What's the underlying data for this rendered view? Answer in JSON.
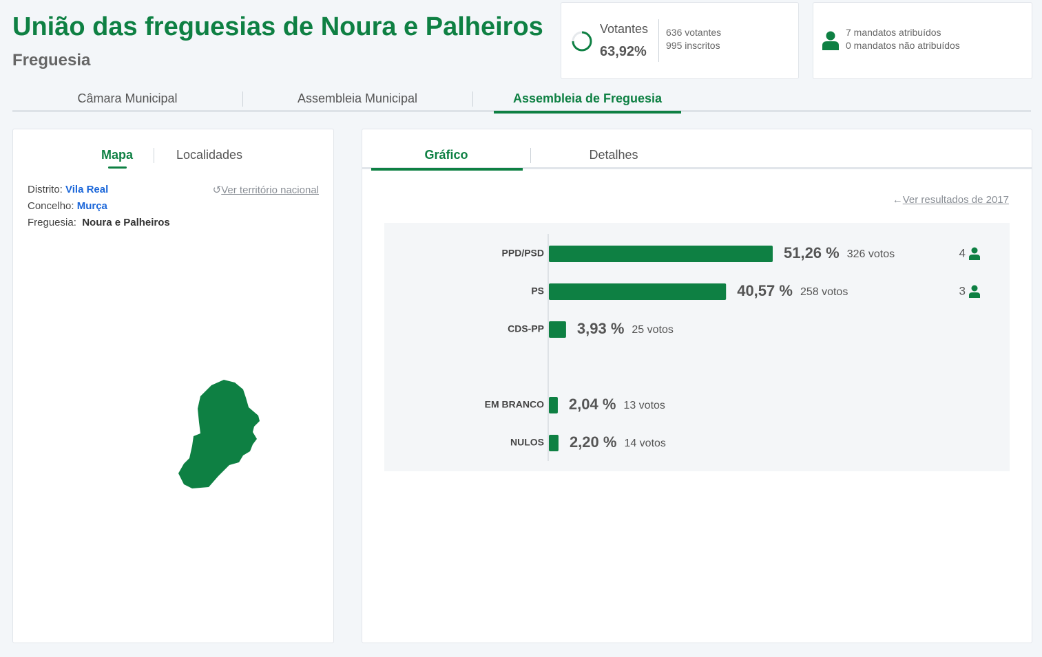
{
  "header": {
    "title": "União das freguesias de Noura e Palheiros",
    "subtitle": "Freguesia"
  },
  "turnout": {
    "label": "Votantes",
    "percent": "63,92%",
    "voters": "636 votantes",
    "registered": "995 inscritos"
  },
  "mandates": {
    "assigned": "7 mandatos atribuídos",
    "unassigned": "0 mandatos não atribuídos"
  },
  "tabs": [
    "Câmara Municipal",
    "Assembleia Municipal",
    "Assembleia de Freguesia"
  ],
  "left_panel": {
    "tabs": [
      "Mapa",
      "Localidades"
    ],
    "link": "Ver território nacional",
    "info": [
      {
        "label": "Distrito:",
        "value": "Vila Real"
      },
      {
        "label": "Concelho:",
        "value": "Murça"
      },
      {
        "label": "Freguesia:",
        "value": "Noura e Palheiros"
      }
    ]
  },
  "right_panel": {
    "tabs": [
      "Gráfico",
      "Detalhes"
    ],
    "link": "Ver resultados de 2017"
  },
  "results": {
    "type": "bar",
    "color": "#0e8043",
    "categories": [
      "PPD/PSD",
      "PS",
      "CDS-PP",
      "EM BRANCO",
      "NULOS"
    ],
    "values": [
      51.26,
      40.57,
      3.93,
      2.04,
      2.2
    ],
    "value_labels": [
      "51,26 %",
      "40,57 %",
      "3,93 %",
      "2,04 %",
      "2,20 %"
    ],
    "vote_labels": [
      "326 votos",
      "258 votos",
      "25 votos",
      "13 votos",
      "14 votos"
    ],
    "seats": [
      4,
      3,
      null,
      null,
      null
    ]
  }
}
